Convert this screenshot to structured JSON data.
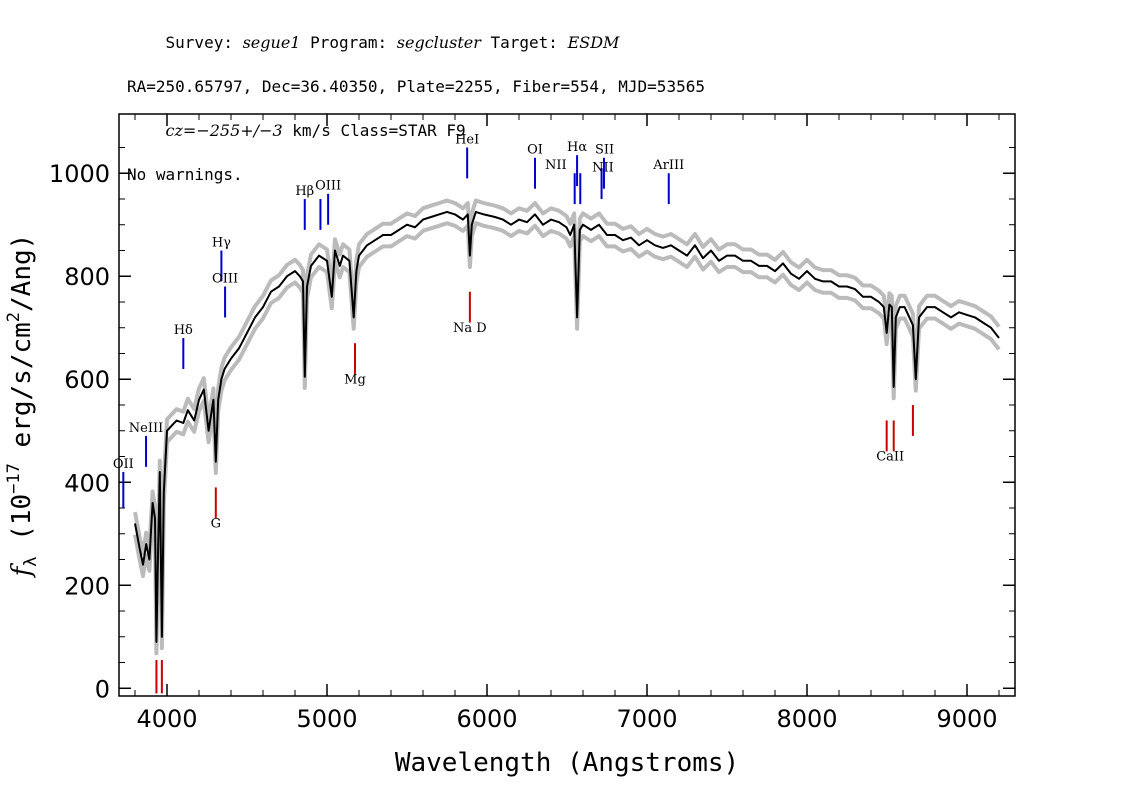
{
  "header": {
    "line1": [
      {
        "t": "Survey: ",
        "i": false
      },
      {
        "t": "segue1",
        "i": true
      },
      {
        "t": " Program: ",
        "i": false
      },
      {
        "t": "segcluster",
        "i": true
      },
      {
        "t": " Target: ",
        "i": false
      },
      {
        "t": "ESDM",
        "i": true
      }
    ],
    "line2": "RA=250.65797, Dec=36.40350, Plate=2255, Fiber=554, MJD=53565",
    "line3": [
      {
        "t": "cz=−255+/−3",
        "i": true
      },
      {
        "t": " km/s Class=STAR F9",
        "i": false
      }
    ],
    "line4": "No warnings."
  },
  "chart_data": {
    "type": "line",
    "xlabel": "Wavelength (Angstroms)",
    "ylabel": "f_λ (10^-17 erg/s/cm²/Ang)",
    "ylabel_parts": {
      "f": "f",
      "sub": "λ",
      "pre": " (10",
      "sup1": "−17",
      "mid": " erg/s/cm",
      "sup2": "2",
      "post": "/Ang)"
    },
    "xlim": [
      3700,
      9300
    ],
    "ylim": [
      -15,
      1115
    ],
    "xticks": [
      4000,
      5000,
      6000,
      7000,
      8000,
      9000
    ],
    "yticks": [
      0,
      200,
      400,
      600,
      800,
      1000
    ],
    "grid": false,
    "series": [
      {
        "color": "#000000",
        "error_color": "#bbbbbb",
        "x": [
          3800,
          3830,
          3850,
          3870,
          3890,
          3910,
          3925,
          3934,
          3945,
          3955,
          3968,
          3980,
          4000,
          4030,
          4060,
          4102,
          4130,
          4170,
          4200,
          4230,
          4260,
          4290,
          4305,
          4320,
          4340,
          4360,
          4400,
          4450,
          4500,
          4550,
          4600,
          4650,
          4700,
          4750,
          4800,
          4830,
          4850,
          4861,
          4875,
          4900,
          4950,
          5000,
          5030,
          5050,
          5080,
          5100,
          5140,
          5167,
          5184,
          5200,
          5250,
          5300,
          5350,
          5400,
          5450,
          5500,
          5550,
          5600,
          5650,
          5700,
          5750,
          5800,
          5850,
          5880,
          5893,
          5905,
          5930,
          5980,
          6050,
          6100,
          6150,
          6200,
          6250,
          6300,
          6350,
          6400,
          6450,
          6497,
          6520,
          6545,
          6563,
          6580,
          6600,
          6650,
          6700,
          6750,
          6800,
          6850,
          6900,
          6950,
          7000,
          7050,
          7100,
          7150,
          7200,
          7250,
          7300,
          7350,
          7400,
          7450,
          7500,
          7550,
          7600,
          7650,
          7700,
          7750,
          7800,
          7850,
          7900,
          7950,
          8000,
          8050,
          8100,
          8150,
          8200,
          8250,
          8300,
          8350,
          8400,
          8450,
          8480,
          8498,
          8515,
          8530,
          8542,
          8555,
          8580,
          8610,
          8640,
          8662,
          8680,
          8700,
          8750,
          8800,
          8850,
          8900,
          8950,
          9000,
          9050,
          9100,
          9150,
          9200
        ],
        "y": [
          320,
          270,
          240,
          280,
          250,
          360,
          330,
          90,
          280,
          420,
          100,
          380,
          500,
          510,
          520,
          515,
          540,
          520,
          560,
          580,
          500,
          560,
          440,
          560,
          600,
          620,
          640,
          660,
          690,
          720,
          740,
          770,
          780,
          800,
          810,
          800,
          790,
          605,
          780,
          820,
          840,
          830,
          760,
          850,
          820,
          840,
          830,
          720,
          810,
          840,
          860,
          870,
          880,
          880,
          890,
          900,
          895,
          910,
          915,
          920,
          925,
          920,
          910,
          920,
          840,
          900,
          925,
          920,
          915,
          910,
          900,
          910,
          905,
          920,
          900,
          910,
          905,
          895,
          880,
          900,
          720,
          890,
          900,
          890,
          900,
          880,
          880,
          870,
          875,
          860,
          870,
          860,
          855,
          860,
          850,
          840,
          860,
          835,
          850,
          830,
          840,
          840,
          830,
          830,
          820,
          820,
          810,
          825,
          805,
          795,
          810,
          795,
          790,
          790,
          780,
          780,
          775,
          760,
          760,
          750,
          740,
          690,
          745,
          740,
          585,
          720,
          740,
          740,
          720,
          705,
          600,
          720,
          740,
          740,
          730,
          720,
          730,
          725,
          720,
          710,
          700,
          680
        ]
      }
    ],
    "lines": [
      {
        "label": "OII",
        "x": 3727,
        "y0": 350,
        "y1": 420,
        "lx": 3727,
        "ly": 428,
        "color": "#0000cc",
        "pos": "above"
      },
      {
        "label": "NeIII",
        "x": 3869,
        "y0": 430,
        "y1": 490,
        "lx": 3869,
        "ly": 498,
        "color": "#0000cc",
        "pos": "above"
      },
      {
        "label": "Hδ",
        "x": 4102,
        "y0": 620,
        "y1": 680,
        "lx": 4102,
        "ly": 688,
        "color": "#0000cc",
        "pos": "above"
      },
      {
        "label": "Hγ",
        "x": 4340,
        "y0": 790,
        "y1": 850,
        "lx": 4340,
        "ly": 858,
        "color": "#0000cc",
        "pos": "above"
      },
      {
        "label": "OIII",
        "x": 4363,
        "y0": 720,
        "y1": 780,
        "lx": 4363,
        "ly": 788,
        "color": "#0000cc",
        "pos": "above-right"
      },
      {
        "label": "Hβ",
        "x": 4861,
        "y0": 890,
        "y1": 950,
        "lx": 4861,
        "ly": 958,
        "color": "#0000cc",
        "pos": "above-left"
      },
      {
        "label": "OIII",
        "x": 4959,
        "y0": 890,
        "y1": 950,
        "lx": 4959,
        "ly": 958,
        "color": "#0000cc",
        "pos": "none"
      },
      {
        "label": "OIII",
        "x": 5007,
        "y0": 900,
        "y1": 960,
        "lx": 5007,
        "ly": 968,
        "color": "#0000cc",
        "pos": "above"
      },
      {
        "label": "HeI",
        "x": 5876,
        "y0": 990,
        "y1": 1050,
        "lx": 5876,
        "ly": 1058,
        "color": "#0000cc",
        "pos": "above"
      },
      {
        "label": "OI",
        "x": 6300,
        "y0": 970,
        "y1": 1030,
        "lx": 6300,
        "ly": 1038,
        "color": "#0000cc",
        "pos": "above"
      },
      {
        "label": "NII",
        "x": 6548,
        "y0": 940,
        "y1": 1000,
        "lx": 6430,
        "ly": 1008,
        "color": "#0000cc",
        "pos": "label-left"
      },
      {
        "label": "Hα",
        "x": 6563,
        "y0": 975,
        "y1": 1035,
        "lx": 6563,
        "ly": 1043,
        "color": "#0000cc",
        "pos": "above"
      },
      {
        "label": "NII",
        "x": 6583,
        "y0": 940,
        "y1": 1000,
        "lx": 6583,
        "ly": 1008,
        "color": "#0000cc",
        "pos": "none"
      },
      {
        "label": "NII",
        "x": 6716,
        "y0": 950,
        "y1": 1010,
        "lx": 6725,
        "ly": 1003,
        "color": "#0000cc",
        "pos": "above"
      },
      {
        "label": "SII",
        "x": 6731,
        "y0": 970,
        "y1": 1030,
        "lx": 6735,
        "ly": 1038,
        "color": "#0000cc",
        "pos": "above"
      },
      {
        "label": "ArIII",
        "x": 7136,
        "y0": 940,
        "y1": 1000,
        "lx": 7136,
        "ly": 1008,
        "color": "#0000cc",
        "pos": "above"
      },
      {
        "label": "",
        "x": 3934,
        "y0": -10,
        "y1": 55,
        "lx": 3934,
        "ly": 0,
        "color": "#cc0000",
        "pos": "none"
      },
      {
        "label": "",
        "x": 3968,
        "y0": -10,
        "y1": 55,
        "lx": 3968,
        "ly": 0,
        "color": "#cc0000",
        "pos": "none"
      },
      {
        "label": "G",
        "x": 4305,
        "y0": 330,
        "y1": 390,
        "lx": 4305,
        "ly": 312,
        "color": "#cc0000",
        "pos": "below"
      },
      {
        "label": "Mg",
        "x": 5175,
        "y0": 610,
        "y1": 670,
        "lx": 5175,
        "ly": 592,
        "color": "#cc0000",
        "pos": "below"
      },
      {
        "label": "Na D",
        "x": 5893,
        "y0": 710,
        "y1": 770,
        "lx": 5893,
        "ly": 692,
        "color": "#cc0000",
        "pos": "below"
      },
      {
        "label": "",
        "x": 8498,
        "y0": 460,
        "y1": 520,
        "lx": 8498,
        "ly": 0,
        "color": "#cc0000",
        "pos": "none"
      },
      {
        "label": "CaII",
        "x": 8542,
        "y0": 460,
        "y1": 520,
        "lx": 8520,
        "ly": 442,
        "color": "#cc0000",
        "pos": "below"
      },
      {
        "label": "",
        "x": 8662,
        "y0": 490,
        "y1": 550,
        "lx": 8662,
        "ly": 0,
        "color": "#cc0000",
        "pos": "none"
      }
    ]
  }
}
